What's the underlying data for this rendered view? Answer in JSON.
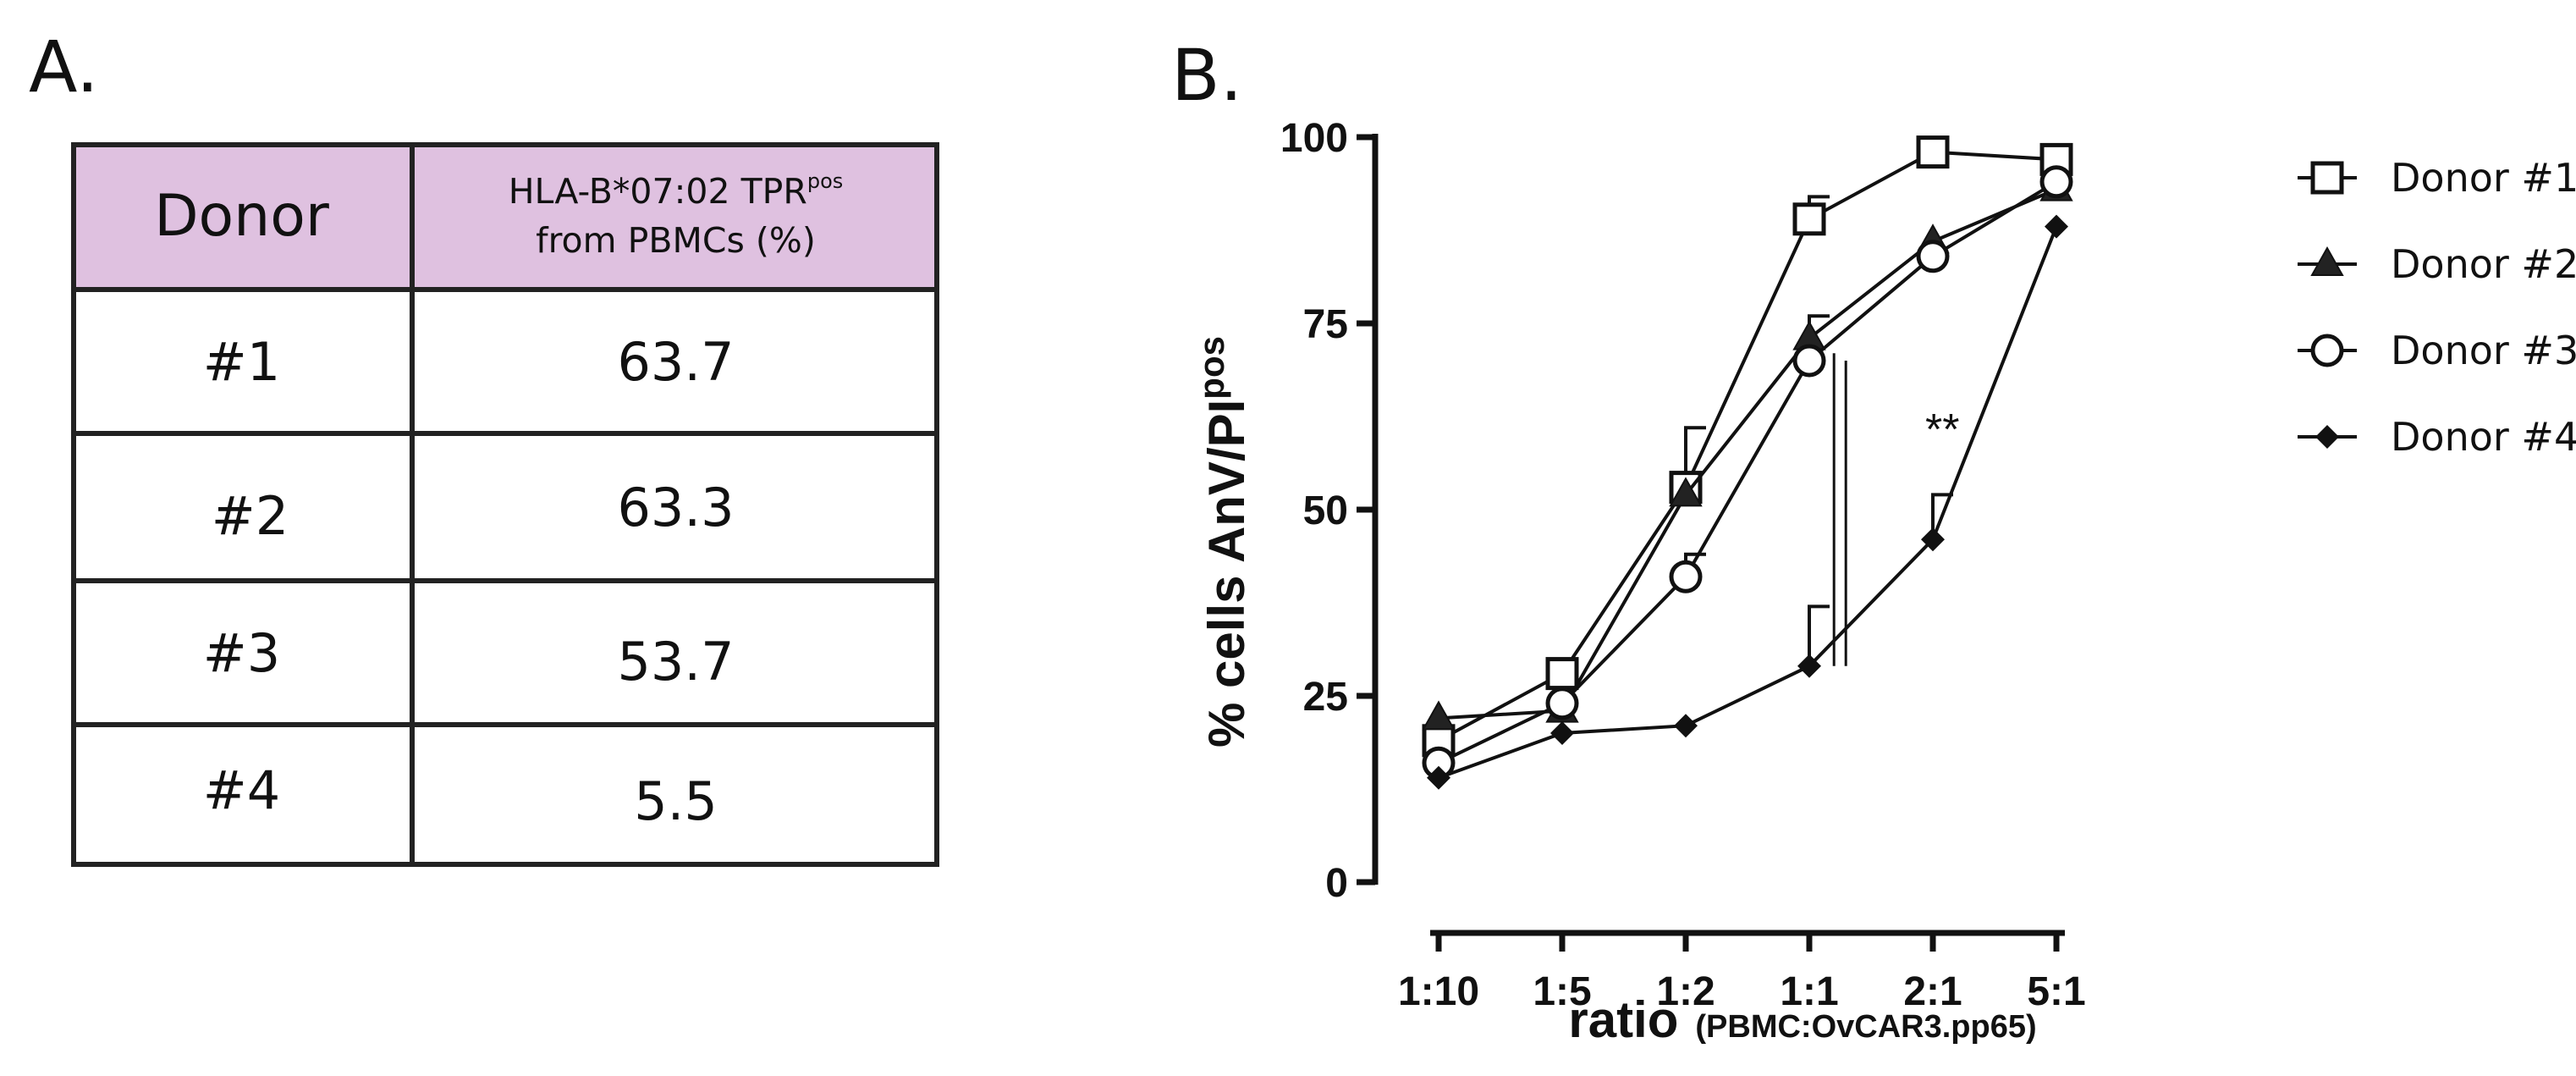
{
  "panel_a_label": "A.",
  "panel_b_label": "B.",
  "table": {
    "headers": [
      "Donor",
      "HLA-B*07:02 TPR",
      "pos",
      "from PBMCs (%)"
    ],
    "rows": [
      {
        "donor": "#1",
        "value": "63.7"
      },
      {
        "donor": "#2",
        "value": "63.3"
      },
      {
        "donor": "#3",
        "value": "53.7"
      },
      {
        "donor": "#4",
        "value": "5.5"
      }
    ],
    "header_color": "#dfc1e0"
  },
  "chart_data": {
    "type": "line",
    "categories": [
      "1:10",
      "1:5",
      "1:2",
      "1:1",
      "2:1",
      "5:1"
    ],
    "ylabel_main": "% cells AnV/PI",
    "ylabel_sup": "pos",
    "xlabel_main": "ratio",
    "xlabel_sub": "(PBMC:OvCAR3.pp65)",
    "ylim": [
      0,
      100
    ],
    "yticks": [
      "0",
      "25",
      "50",
      "75",
      "100"
    ],
    "significance": "**",
    "series": [
      {
        "name": "Donor #1",
        "marker": "square-open",
        "values": [
          19,
          28,
          53,
          89,
          98,
          97
        ],
        "err_up": [
          0,
          0,
          8,
          3,
          0,
          0
        ]
      },
      {
        "name": "Donor #2",
        "marker": "triangle-filled",
        "values": [
          22,
          23,
          52,
          73,
          86,
          93
        ],
        "err_up": [
          0,
          0,
          0,
          3,
          0,
          0
        ]
      },
      {
        "name": "Donor #3",
        "marker": "circle-open",
        "values": [
          16,
          24,
          41,
          70,
          84,
          94
        ],
        "err_up": [
          0,
          0,
          3,
          0,
          0,
          0
        ]
      },
      {
        "name": "Donor #4",
        "marker": "diamond-filled",
        "values": [
          14,
          20,
          21,
          29,
          46,
          88
        ],
        "err_up": [
          0,
          0,
          0,
          8,
          6,
          0
        ]
      }
    ]
  }
}
